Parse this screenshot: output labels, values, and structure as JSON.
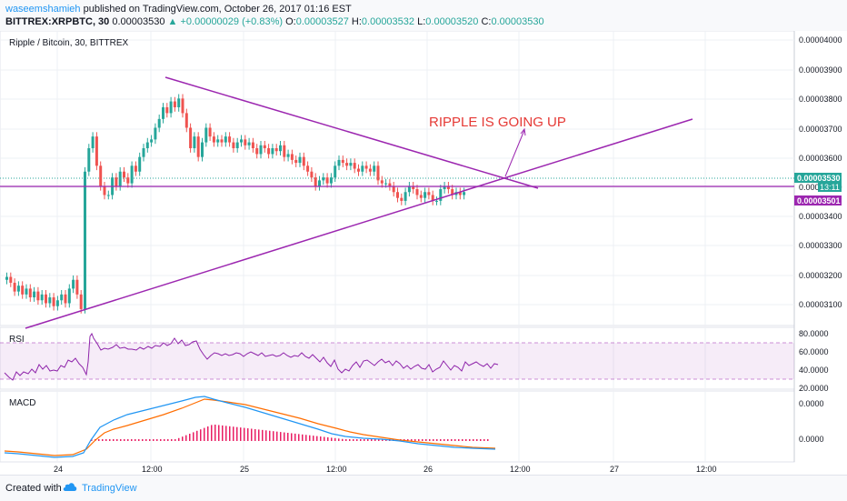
{
  "header": {
    "author": "waseemshamieh",
    "published_text": "published on TradingView.com, October 26, 2017 01:16 EST",
    "symbol": "BITTREX:XRPBTC, 30",
    "last_price": "0.00003530",
    "change": "▲ +0.00000029 (+0.83%)",
    "o_label": "O:",
    "o_value": "0.00003527",
    "h_label": "H:",
    "h_value": "0.00003532",
    "l_label": "L:",
    "l_value": "0.00003520",
    "c_label": "C:",
    "c_value": "0.00003530"
  },
  "main_pane": {
    "title": "Ripple / Bitcoin, 30, BITTREX",
    "price_ticks": [
      "0.00004000",
      "0.00003900",
      "0.00003800",
      "0.00003700",
      "0.00003600",
      "0.00003500",
      "0.00003400",
      "0.00003300",
      "0.00003200",
      "0.00003100"
    ],
    "price_badge": "0.00003530",
    "countdown": "13:11",
    "line_badge": "0.00003501",
    "annotation": "RIPPLE IS GOING UP"
  },
  "rsi_pane": {
    "label": "RSI",
    "ticks": [
      "80.0000",
      "60.0000",
      "40.0000",
      "20.0000"
    ]
  },
  "macd_pane": {
    "label": "MACD",
    "ticks": [
      "0.0000",
      "0.0000"
    ]
  },
  "time_axis": [
    "24",
    "12:00",
    "25",
    "12:00",
    "26",
    "12:00",
    "27",
    "12:00"
  ],
  "footer": {
    "created_with": "Created with",
    "brand": "TradingView"
  },
  "colors": {
    "up": "#26a69a",
    "down": "#ef5350",
    "trendline": "#9c27b0",
    "annotation": "#e53935",
    "rsi_line": "#8e24aa",
    "macd_line": "#2196f3",
    "signal_line": "#ff6d00",
    "histogram": "#e91e63"
  },
  "chart_data": {
    "type": "candlestick",
    "title": "Ripple / Bitcoin, 30, BITTREX",
    "ylim": [
      3.08e-05,
      4.05e-05
    ],
    "x_ticks": [
      "24",
      "12:00",
      "25",
      "12:00",
      "26",
      "12:00",
      "27",
      "12:00"
    ],
    "series": [
      {
        "name": "XRPBTC",
        "close": [
          3.24e-05,
          3.22e-05,
          3.19e-05,
          3.21e-05,
          3.18e-05,
          3.2e-05,
          3.17e-05,
          3.19e-05,
          3.16e-05,
          3.18e-05,
          3.15e-05,
          3.17e-05,
          3.14e-05,
          3.16e-05,
          3.18e-05,
          3.15e-05,
          3.2e-05,
          3.23e-05,
          3.18e-05,
          3.13e-05,
          3.6e-05,
          3.68e-05,
          3.72e-05,
          3.62e-05,
          3.55e-05,
          3.52e-05,
          3.52e-05,
          3.58e-05,
          3.55e-05,
          3.6e-05,
          3.58e-05,
          3.56e-05,
          3.62e-05,
          3.6e-05,
          3.65e-05,
          3.68e-05,
          3.7e-05,
          3.71e-05,
          3.75e-05,
          3.78e-05,
          3.82e-05,
          3.8e-05,
          3.84e-05,
          3.82e-05,
          3.85e-05,
          3.8e-05,
          3.75e-05,
          3.68e-05,
          3.72e-05,
          3.65e-05,
          3.7e-05,
          3.75e-05,
          3.72e-05,
          3.7e-05,
          3.71e-05,
          3.7e-05,
          3.72e-05,
          3.7e-05,
          3.68e-05,
          3.7e-05,
          3.71e-05,
          3.69e-05,
          3.7e-05,
          3.68e-05,
          3.66e-05,
          3.69e-05,
          3.68e-05,
          3.66e-05,
          3.68e-05,
          3.67e-05,
          3.69e-05,
          3.65e-05,
          3.66e-05,
          3.64e-05,
          3.63e-05,
          3.65e-05,
          3.62e-05,
          3.6e-05,
          3.58e-05,
          3.55e-05,
          3.57e-05,
          3.58e-05,
          3.56e-05,
          3.58e-05,
          3.62e-05,
          3.64e-05,
          3.63e-05,
          3.62e-05,
          3.63e-05,
          3.61e-05,
          3.6e-05,
          3.62e-05,
          3.61e-05,
          3.6e-05,
          3.62e-05,
          3.57e-05,
          3.56e-05,
          3.56e-05,
          3.55e-05,
          3.53e-05,
          3.51e-05,
          3.5e-05,
          3.53e-05,
          3.55e-05,
          3.54e-05,
          3.52e-05,
          3.51e-05,
          3.53e-05,
          3.52e-05,
          3.5e-05,
          3.5e-05,
          3.54e-05,
          3.55e-05,
          3.54e-05,
          3.52e-05,
          3.53e-05,
          3.52e-05,
          3.53e-05
        ]
      }
    ]
  }
}
